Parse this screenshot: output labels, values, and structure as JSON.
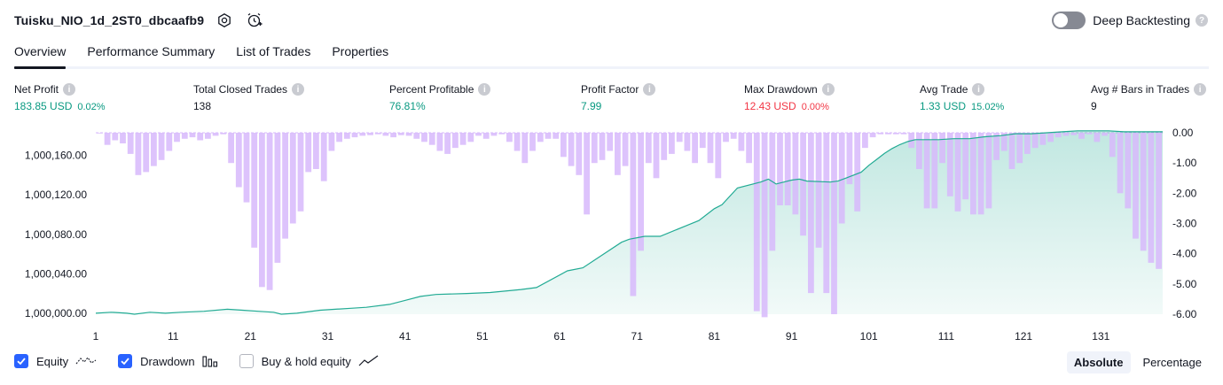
{
  "header": {
    "title": "Tuisku_NIO_1d_2ST0_dbcaafb9",
    "deep_backtesting_label": "Deep Backtesting"
  },
  "tabs": [
    {
      "label": "Overview"
    },
    {
      "label": "Performance Summary"
    },
    {
      "label": "List of Trades"
    },
    {
      "label": "Properties"
    }
  ],
  "metrics": {
    "net_profit": {
      "label": "Net Profit",
      "value": "183.85 USD",
      "pct": "0.02%"
    },
    "total_closed_trades": {
      "label": "Total Closed Trades",
      "value": "138"
    },
    "percent_profitable": {
      "label": "Percent Profitable",
      "value": "76.81%"
    },
    "profit_factor": {
      "label": "Profit Factor",
      "value": "7.99"
    },
    "max_drawdown": {
      "label": "Max Drawdown",
      "value": "12.43 USD",
      "pct": "0.00%"
    },
    "avg_trade": {
      "label": "Avg Trade",
      "value": "1.33 USD",
      "pct": "15.02%"
    },
    "avg_bars": {
      "label": "Avg # Bars in Trades",
      "value": "9"
    }
  },
  "colors": {
    "positive": "#089981",
    "negative": "#f23645",
    "drawdown_bar": "#d7b8fb",
    "equity_line": "#22ab94",
    "accent": "#2962ff"
  },
  "chart_data": {
    "type": "area",
    "x_ticks": [
      "1",
      "11",
      "21",
      "31",
      "41",
      "51",
      "61",
      "71",
      "81",
      "91",
      "101",
      "111",
      "121",
      "131"
    ],
    "left_axis": {
      "ticks": [
        "1,000,000.00",
        "1,000,040.00",
        "1,000,080.00",
        "1,000,120.00",
        "1,000,160.00"
      ],
      "tick_values": [
        1000000,
        1000040,
        1000080,
        1000120,
        1000160
      ],
      "range": [
        999999,
        1000183
      ]
    },
    "right_axis": {
      "ticks": [
        "0.00",
        "-1.00",
        "-2.00",
        "-3.00",
        "-4.00",
        "-5.00",
        "-6.00"
      ],
      "tick_values": [
        0,
        -1,
        -2,
        -3,
        -4,
        -5,
        -6
      ],
      "range": [
        -6,
        0
      ]
    },
    "series": [
      {
        "name": "Equity",
        "x": [
          1,
          3,
          5,
          6,
          8,
          10,
          12,
          15,
          18,
          20,
          22,
          24,
          25,
          27,
          30,
          34,
          36,
          39,
          41,
          43,
          45,
          49,
          52,
          56,
          58,
          62,
          64,
          69,
          70,
          72,
          74,
          79,
          81,
          82,
          84,
          87,
          88,
          89,
          91,
          92,
          93,
          96,
          97,
          98,
          100,
          101,
          102,
          103,
          104,
          105,
          106,
          107,
          108,
          110,
          112,
          114,
          116,
          118,
          120,
          122,
          124,
          126,
          128,
          130,
          132,
          134,
          136,
          139
        ],
        "values": [
          1000000,
          1000001,
          1000000,
          999999,
          1000001,
          1000000,
          1000001,
          1000002,
          1000004,
          1000003,
          1000002,
          1000001,
          999999,
          1000000,
          1000003,
          1000005,
          1000006,
          1000009,
          1000013,
          1000017,
          1000019,
          1000020,
          1000021,
          1000024,
          1000026,
          1000043,
          1000046,
          1000072,
          1000075,
          1000078,
          1000078,
          1000094,
          1000106,
          1000110,
          1000127,
          1000133,
          1000136,
          1000131,
          1000135,
          1000136,
          1000134,
          1000133,
          1000134,
          1000137,
          1000143,
          1000150,
          1000156,
          1000162,
          1000167,
          1000171,
          1000174,
          1000176,
          1000176,
          1000176,
          1000177,
          1000177,
          1000179,
          1000180,
          1000182,
          1000182,
          1000183,
          1000184,
          1000185,
          1000185,
          1000185,
          1000184,
          1000184,
          1000184
        ]
      },
      {
        "name": "Drawdown",
        "x": [
          1,
          2,
          3,
          4,
          5,
          6,
          7,
          8,
          9,
          10,
          11,
          12,
          13,
          14,
          15,
          16,
          17,
          18,
          19,
          20,
          21,
          22,
          23,
          24,
          25,
          26,
          27,
          28,
          29,
          30,
          31,
          32,
          33,
          34,
          35,
          36,
          37,
          38,
          39,
          40,
          41,
          42,
          43,
          44,
          45,
          46,
          47,
          48,
          49,
          50,
          51,
          52,
          53,
          54,
          55,
          56,
          57,
          58,
          59,
          60,
          61,
          62,
          63,
          64,
          65,
          66,
          67,
          68,
          69,
          70,
          71,
          72,
          73,
          74,
          75,
          76,
          77,
          78,
          79,
          80,
          81,
          82,
          83,
          84,
          85,
          86,
          87,
          88,
          89,
          90,
          91,
          92,
          93,
          94,
          95,
          96,
          97,
          98,
          99,
          100,
          101,
          102,
          103,
          104,
          105,
          106,
          107,
          108,
          109,
          110,
          111,
          112,
          113,
          114,
          115,
          116,
          117,
          118,
          119,
          120,
          121,
          122,
          123,
          124,
          125,
          126,
          127,
          128,
          129,
          130,
          131,
          132,
          133,
          134,
          135,
          136,
          137,
          138
        ],
        "values": [
          -0.02,
          -0.4,
          -0.25,
          -0.35,
          -0.7,
          -1.4,
          -1.3,
          -1.1,
          -0.9,
          -0.6,
          -0.3,
          -0.2,
          -0.15,
          -0.25,
          -0.2,
          -0.1,
          -0.05,
          -1.0,
          -1.8,
          -2.3,
          -3.8,
          -5.1,
          -5.2,
          -4.3,
          -3.5,
          -3.0,
          -2.6,
          -1.3,
          -1.2,
          -1.6,
          -0.6,
          -0.3,
          -0.2,
          -0.15,
          -0.1,
          -0.08,
          -0.05,
          -0.1,
          -0.15,
          -0.08,
          -0.1,
          -0.2,
          -0.3,
          -0.4,
          -0.6,
          -0.7,
          -0.5,
          -0.4,
          -0.3,
          -0.1,
          -0.2,
          -0.1,
          -0.05,
          -0.3,
          -0.6,
          -1.0,
          -0.6,
          -0.3,
          -0.2,
          -0.2,
          -0.8,
          -1.1,
          -1.4,
          -2.7,
          -1.0,
          -0.9,
          -0.6,
          -1.4,
          -1.1,
          -5.4,
          -3.9,
          -1.0,
          -1.5,
          -0.9,
          -0.7,
          -0.3,
          -0.6,
          -1.0,
          -0.5,
          -1.0,
          -1.5,
          -0.3,
          -0.2,
          -0.6,
          -1.0,
          -5.9,
          -6.1,
          -3.9,
          -2.4,
          -2.4,
          -2.7,
          -3.4,
          -5.3,
          -3.8,
          -5.3,
          -6.0,
          -3.0,
          -1.7,
          -2.6,
          -0.5,
          -0.15,
          -0.05,
          -0.05,
          -0.05,
          -0.05,
          -0.5,
          -1.2,
          -2.5,
          -2.5,
          -1.0,
          -2.1,
          -2.6,
          -2.2,
          -2.7,
          -2.7,
          -2.5,
          -0.9,
          -0.6,
          -1.2,
          -1.0,
          -0.7,
          -0.5,
          -0.4,
          -0.3,
          -0.15,
          -0.1,
          -0.08,
          -0.2,
          -0.05,
          -0.3,
          -0.1,
          -0.8,
          -2.0,
          -2.5,
          -3.5,
          -3.9,
          -4.3,
          -4.5
        ]
      }
    ]
  },
  "legend": {
    "equity_label": "Equity",
    "drawdown_label": "Drawdown",
    "buy_hold_label": "Buy & hold equity"
  },
  "view_switch": {
    "absolute_label": "Absolute",
    "percentage_label": "Percentage"
  }
}
